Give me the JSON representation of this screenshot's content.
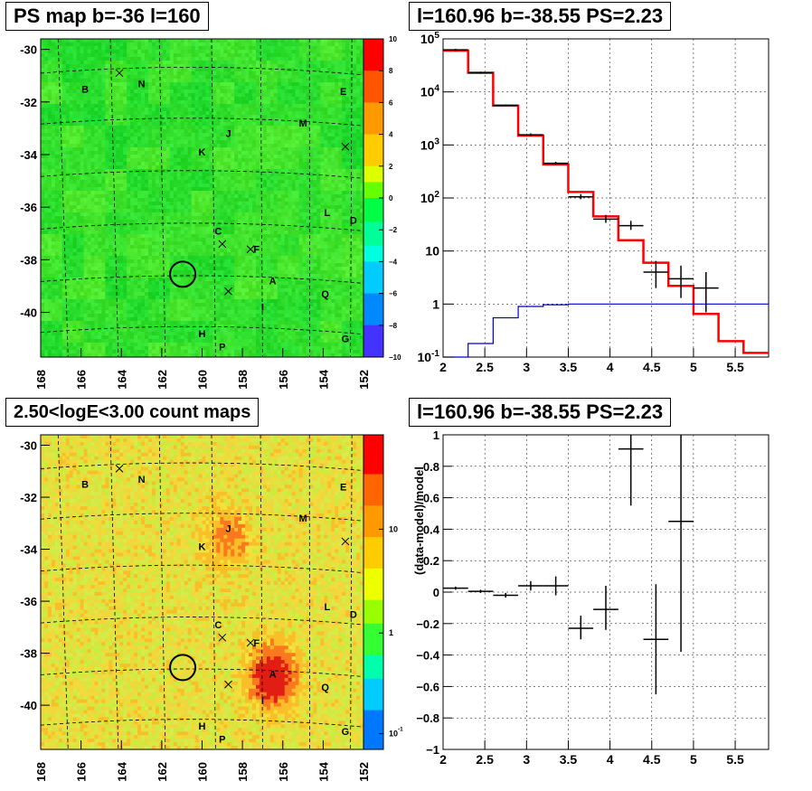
{
  "panels": {
    "ps_map_title": "PS map b=-36 l=160",
    "spectrum_title": "l=160.96 b=-38.55 PS=2.23",
    "count_map_title": "2.50<logE<3.00 count maps",
    "residual_title": "l=160.96 b=-38.55 PS=2.23"
  },
  "chart_data": [
    {
      "id": "ps_map",
      "type": "heatmap",
      "title": "PS map b=-36 l=160",
      "x_ticks": [
        "168",
        "166",
        "164",
        "162",
        "160",
        "158",
        "156",
        "154",
        "152"
      ],
      "y_ticks": [
        "-30",
        "-32",
        "-34",
        "-36",
        "-38",
        "-40"
      ],
      "xlim": [
        168,
        152
      ],
      "ylim": [
        -41.7,
        -29.6
      ],
      "colorbar": {
        "min": -10,
        "max": 10,
        "ticks": [
          "10",
          "8",
          "6",
          "4",
          "2",
          "0",
          "−2",
          "−4",
          "−6",
          "−8",
          "−10"
        ]
      },
      "source_labels": [
        {
          "text": "B",
          "l": 165.8,
          "b": -31.5
        },
        {
          "text": "N",
          "l": 163.0,
          "b": -31.3
        },
        {
          "text": "E",
          "l": 153.0,
          "b": -31.6
        },
        {
          "text": "J",
          "l": 158.7,
          "b": -33.2
        },
        {
          "text": "M",
          "l": 155.0,
          "b": -32.8
        },
        {
          "text": "K",
          "l": 160.0,
          "b": -33.9
        },
        {
          "text": "L",
          "l": 153.8,
          "b": -36.2
        },
        {
          "text": "D",
          "l": 152.5,
          "b": -36.5
        },
        {
          "text": "C",
          "l": 159.2,
          "b": -36.9
        },
        {
          "text": "F",
          "l": 157.3,
          "b": -37.6
        },
        {
          "text": "A",
          "l": 156.5,
          "b": -38.8
        },
        {
          "text": "Q",
          "l": 153.9,
          "b": -39.3
        },
        {
          "text": "I",
          "l": 157.0,
          "b": -39.8
        },
        {
          "text": "H",
          "l": 160.0,
          "b": -40.8
        },
        {
          "text": "G",
          "l": 152.9,
          "b": -41.0
        },
        {
          "text": "P",
          "l": 159.0,
          "b": -41.3
        }
      ],
      "cross_markers": [
        {
          "l": 164.1,
          "b": -30.9
        },
        {
          "l": 152.9,
          "b": -33.7
        },
        {
          "l": 159.0,
          "b": -37.4
        },
        {
          "l": 157.6,
          "b": -37.6
        },
        {
          "l": 158.7,
          "b": -39.2
        }
      ],
      "circle": {
        "l": 160.96,
        "b": -38.55
      }
    },
    {
      "id": "spectrum",
      "type": "line",
      "title": "l=160.96 b=-38.55 PS=2.23",
      "log_y": true,
      "xlim": [
        2.0,
        5.9
      ],
      "ylim": [
        0.1,
        100000
      ],
      "x_ticks": [
        "2",
        "2.5",
        "3",
        "3.5",
        "4",
        "4.5",
        "5",
        "5.5"
      ],
      "y_ticks": [
        "10^-1",
        "1",
        "10",
        "10^2",
        "10^3",
        "10^4",
        "10^5"
      ],
      "series": [
        {
          "style": "step",
          "color": "#ff0000",
          "edges": [
            2.0,
            2.3,
            2.6,
            2.9,
            3.2,
            3.5,
            3.8,
            4.1,
            4.4,
            4.7,
            5.0,
            5.3,
            5.6,
            5.9
          ],
          "values": [
            60000,
            23000,
            5500,
            1500,
            430,
            130,
            45,
            16,
            6,
            2.2,
            0.65,
            0.2,
            0.12
          ]
        },
        {
          "style": "step",
          "color": "#0000cc",
          "edges": [
            2.0,
            2.3,
            2.6,
            2.9,
            3.2,
            3.5,
            3.8,
            4.1,
            4.4,
            4.7,
            5.0,
            5.3,
            5.6,
            5.9
          ],
          "values": [
            0.1,
            0.18,
            0.55,
            0.9,
            0.97,
            1.0,
            1.0,
            1.0,
            1.0,
            1.0,
            1.0,
            1.0,
            1.0
          ]
        },
        {
          "style": "errorbars",
          "color": "#000000",
          "points": [
            {
              "x": 2.15,
              "y": 62000,
              "xerr": 0.15,
              "ylo": 59000,
              "yhi": 65000
            },
            {
              "x": 2.45,
              "y": 23000,
              "xerr": 0.15,
              "ylo": 22000,
              "yhi": 24000
            },
            {
              "x": 2.75,
              "y": 5600,
              "xerr": 0.15,
              "ylo": 5400,
              "yhi": 5800
            },
            {
              "x": 3.05,
              "y": 1550,
              "xerr": 0.15,
              "ylo": 1450,
              "yhi": 1650
            },
            {
              "x": 3.35,
              "y": 450,
              "xerr": 0.15,
              "ylo": 420,
              "yhi": 480
            },
            {
              "x": 3.65,
              "y": 105,
              "xerr": 0.15,
              "ylo": 95,
              "yhi": 118
            },
            {
              "x": 3.95,
              "y": 40,
              "xerr": 0.15,
              "ylo": 34,
              "yhi": 48
            },
            {
              "x": 4.25,
              "y": 30,
              "xerr": 0.15,
              "ylo": 25,
              "yhi": 37
            },
            {
              "x": 4.55,
              "y": 4,
              "xerr": 0.15,
              "ylo": 2.0,
              "yhi": 6.5
            },
            {
              "x": 4.85,
              "y": 3,
              "xerr": 0.15,
              "ylo": 1.3,
              "yhi": 5.3
            },
            {
              "x": 5.15,
              "y": 2,
              "xerr": 0.15,
              "ylo": 0.7,
              "yhi": 4.0
            }
          ]
        }
      ]
    },
    {
      "id": "count_map",
      "type": "heatmap",
      "title": "2.50<logE<3.00 count maps",
      "x_ticks": [
        "168",
        "166",
        "164",
        "162",
        "160",
        "158",
        "156",
        "154",
        "152"
      ],
      "y_ticks": [
        "-30",
        "-32",
        "-34",
        "-36",
        "-38",
        "-40"
      ],
      "xlim": [
        168,
        152
      ],
      "ylim": [
        -41.7,
        -29.6
      ],
      "colorbar": {
        "log": true,
        "ticks": [
          "10",
          "1",
          "10^-1"
        ]
      },
      "hotspots": [
        {
          "l": 156.5,
          "b": -38.9,
          "strength": 1.0
        },
        {
          "l": 158.7,
          "b": -33.6,
          "strength": 0.45
        }
      ],
      "source_labels_same_as": "ps_map"
    },
    {
      "id": "residual",
      "type": "scatter",
      "title": "l=160.96 b=-38.55 PS=2.23",
      "ylabel": "(data-model)/model",
      "xlim": [
        2.0,
        5.9
      ],
      "ylim": [
        -1,
        1
      ],
      "x_ticks": [
        "2",
        "2.5",
        "3",
        "3.5",
        "4",
        "4.5",
        "5",
        "5.5"
      ],
      "y_ticks": [
        "1",
        "0.8",
        "0.6",
        "0.4",
        "0.2",
        "0",
        "−0.2",
        "−0.4",
        "−0.6",
        "−0.8",
        "−1"
      ],
      "points": [
        {
          "x": 2.15,
          "y": 0.025,
          "xerr": 0.15,
          "ylo": 0.015,
          "yhi": 0.035
        },
        {
          "x": 2.45,
          "y": 0.005,
          "xerr": 0.15,
          "ylo": -0.005,
          "yhi": 0.015
        },
        {
          "x": 2.75,
          "y": -0.02,
          "xerr": 0.15,
          "ylo": -0.035,
          "yhi": -0.005
        },
        {
          "x": 3.05,
          "y": 0.04,
          "xerr": 0.15,
          "ylo": 0.01,
          "yhi": 0.07
        },
        {
          "x": 3.35,
          "y": 0.04,
          "xerr": 0.15,
          "ylo": -0.02,
          "yhi": 0.1
        },
        {
          "x": 3.65,
          "y": -0.23,
          "xerr": 0.15,
          "ylo": -0.3,
          "yhi": -0.15
        },
        {
          "x": 3.95,
          "y": -0.11,
          "xerr": 0.15,
          "ylo": -0.24,
          "yhi": 0.04
        },
        {
          "x": 4.25,
          "y": 0.91,
          "xerr": 0.15,
          "ylo": 0.55,
          "yhi": 1.0
        },
        {
          "x": 4.55,
          "y": -0.3,
          "xerr": 0.15,
          "ylo": -0.65,
          "yhi": 0.05
        },
        {
          "x": 4.85,
          "y": 0.45,
          "xerr": 0.15,
          "ylo": -0.38,
          "yhi": 1.0
        }
      ]
    }
  ]
}
